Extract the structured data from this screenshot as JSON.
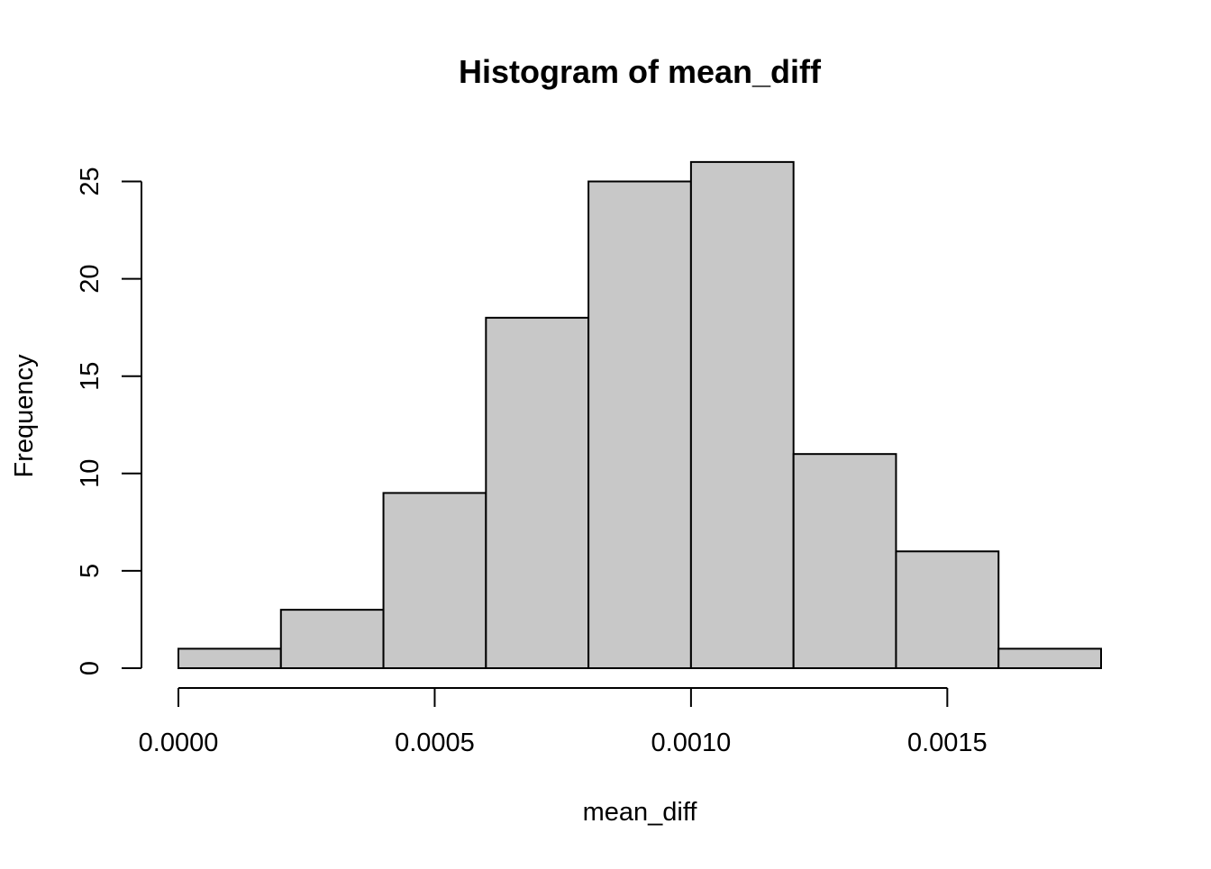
{
  "chart_data": {
    "type": "bar",
    "title": "Histogram of mean_diff",
    "xlabel": "mean_diff",
    "ylabel": "Frequency",
    "bin_edges": [
      0.0,
      0.0002,
      0.0004,
      0.0006,
      0.0008,
      0.001,
      0.0012,
      0.0014,
      0.0016,
      0.0018
    ],
    "values": [
      1,
      3,
      9,
      18,
      25,
      26,
      11,
      6,
      1
    ],
    "xlim": [
      0.0,
      0.0018
    ],
    "ylim": [
      0,
      26
    ],
    "x_ticks": [
      0.0,
      0.0005,
      0.001,
      0.0015
    ],
    "x_tick_labels": [
      "0.0000",
      "0.0005",
      "0.0010",
      "0.0015"
    ],
    "y_ticks": [
      0,
      5,
      10,
      15,
      20,
      25
    ],
    "y_tick_labels": [
      "0",
      "5",
      "10",
      "15",
      "20",
      "25"
    ],
    "bar_fill": "#c8c8c8",
    "bar_stroke": "#000000",
    "grid": false,
    "legend": "none"
  }
}
